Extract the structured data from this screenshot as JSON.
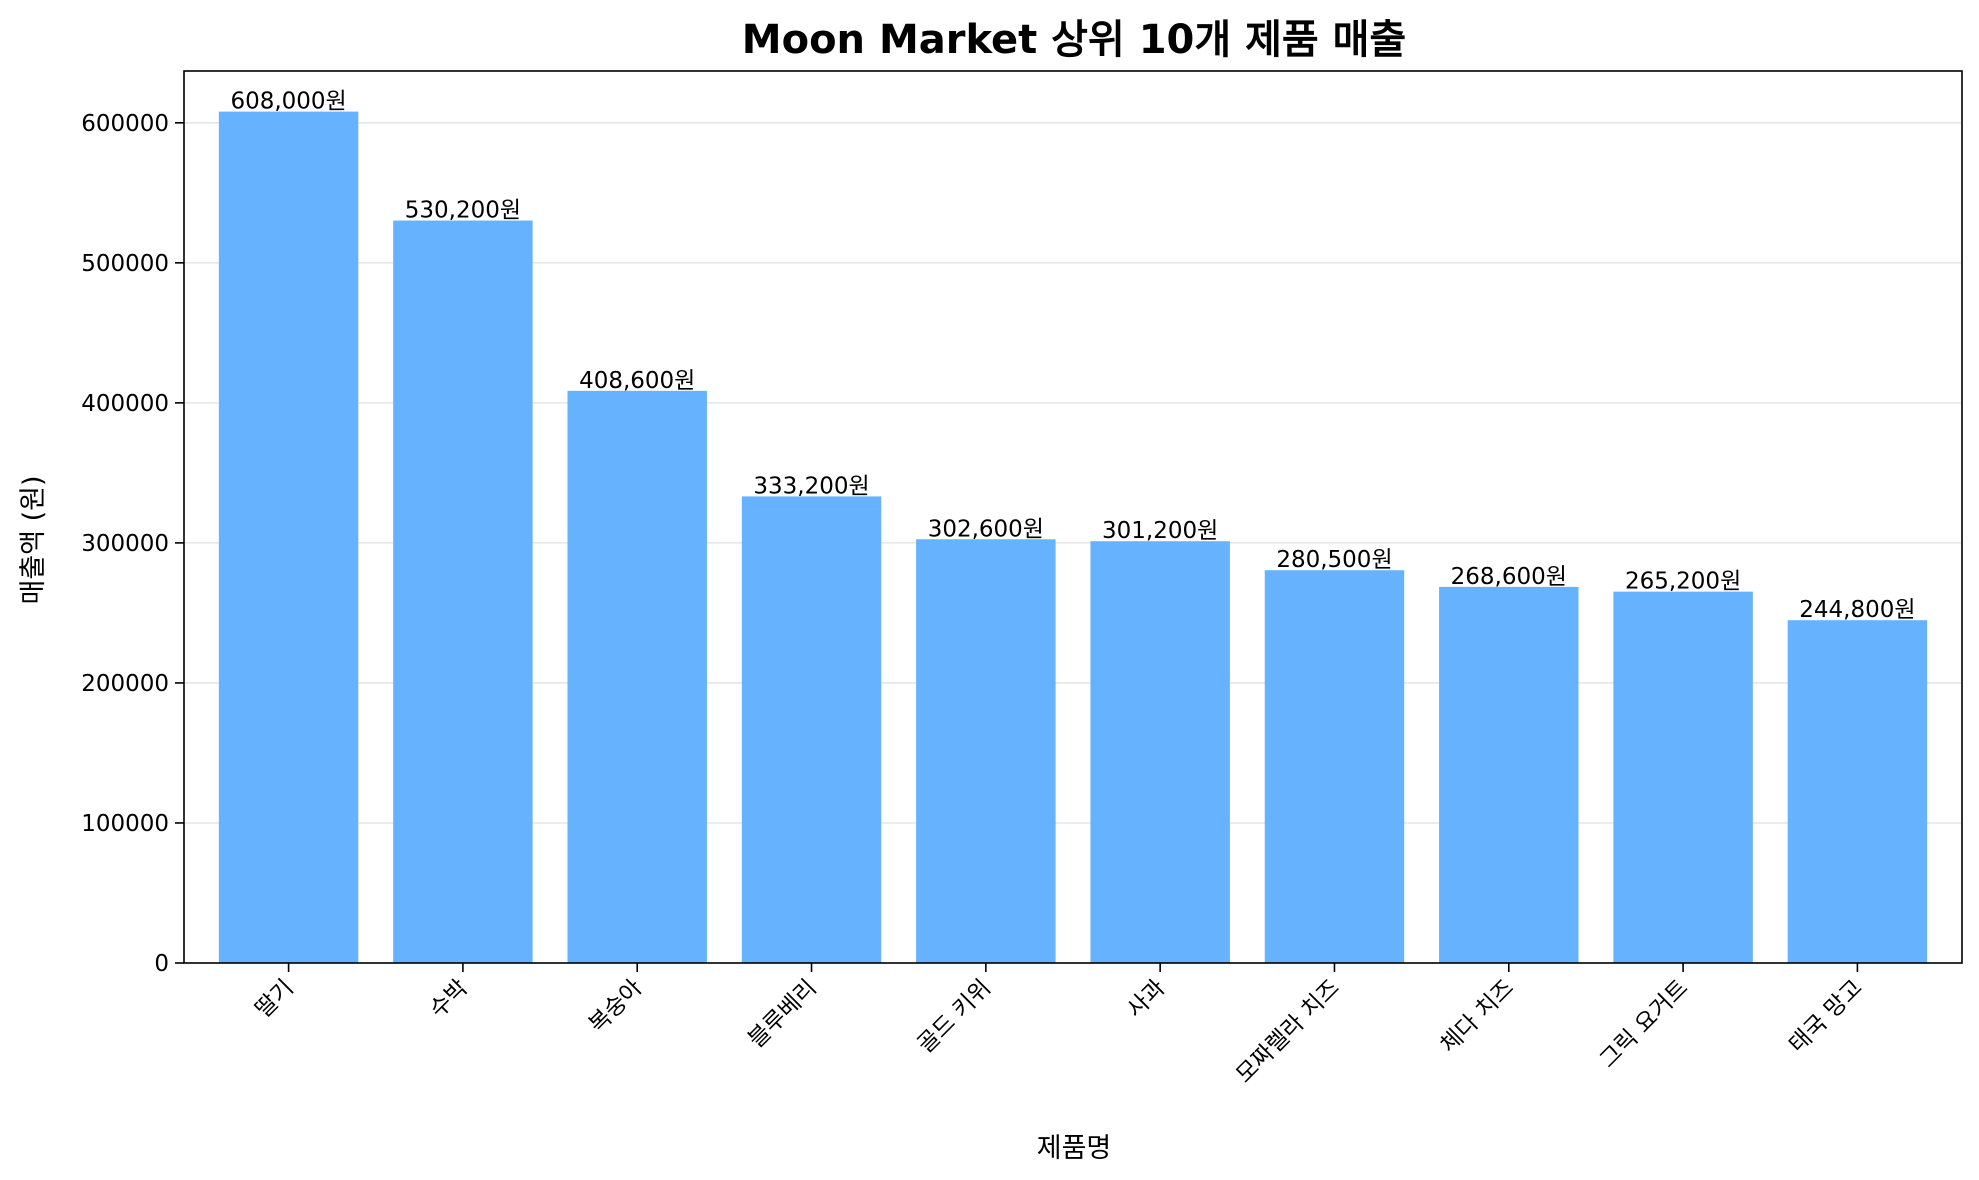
{
  "colors": {
    "bar": "#66b2ff",
    "grid": "#e0e0e0",
    "axis": "#000000"
  },
  "chart_data": {
    "type": "bar",
    "title": "Moon Market 상위 10개 제품 매출",
    "xlabel": "제품명",
    "ylabel": "매출액 (원)",
    "categories": [
      "딸기",
      "수박",
      "복숭아",
      "블루베리",
      "골드 키위",
      "사과",
      "모짜렐라 치즈",
      "체다 치즈",
      "그릭 요거트",
      "태국 망고"
    ],
    "values": [
      608000,
      530200,
      408600,
      333200,
      302600,
      301200,
      280500,
      268600,
      265200,
      244800
    ],
    "value_labels": [
      "608,000원",
      "530,200원",
      "408,600원",
      "333,200원",
      "302,600원",
      "301,200원",
      "280,500원",
      "268,600원",
      "265,200원",
      "244,800원"
    ],
    "ylim": [
      0,
      637000
    ],
    "yticks": [
      0,
      100000,
      200000,
      300000,
      400000,
      500000,
      600000
    ],
    "ytick_labels": [
      "0",
      "100000",
      "200000",
      "300000",
      "400000",
      "500000",
      "600000"
    ],
    "grid": true,
    "grid_axis": "y",
    "legend": false
  }
}
